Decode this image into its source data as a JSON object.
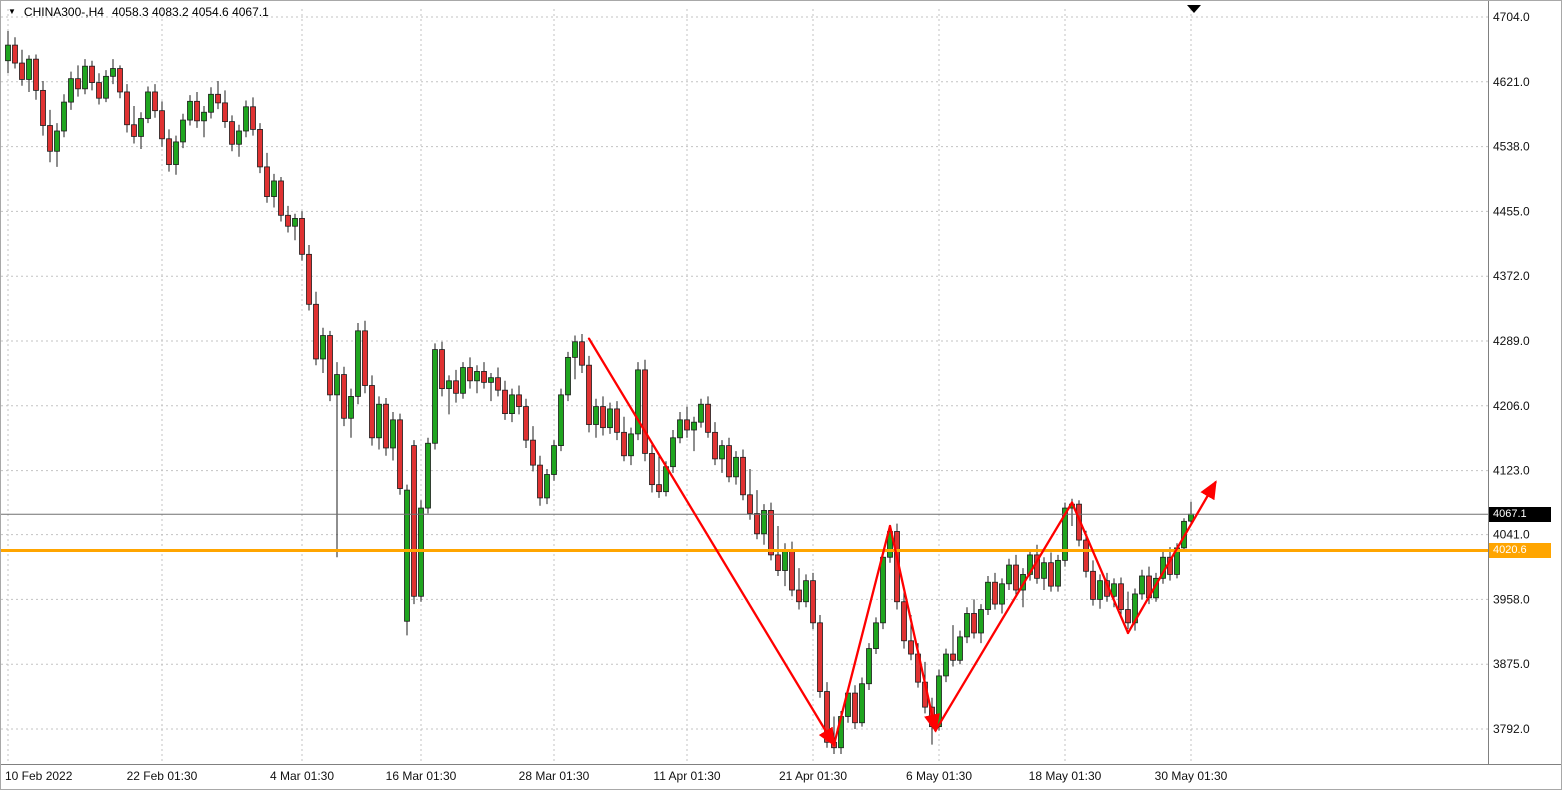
{
  "header": {
    "marker": "▼",
    "symbol": "CHINA300-,H4",
    "ohlc": "4058.3 4083.2 4054.6 4067.1"
  },
  "style": {
    "background": "#ffffff",
    "grid_color": "#c3c3c3",
    "axis_text_color": "#111111",
    "separator_color": "#808080",
    "bull_color": "#1fa51f",
    "bear_color": "#e03232",
    "candle_outline": "#1c1c1c",
    "current_badge_bg": "#000000",
    "shift_marker_color": "#000000"
  },
  "chart_data": {
    "type": "candlestick",
    "title": "CHINA300-,H4",
    "symbol": "CHINA300-",
    "timeframe": "H4",
    "grid": true,
    "ylim": [
      3747,
      4712
    ],
    "bar_spacing_px": 7,
    "current_bar": {
      "open": 4058.3,
      "high": 4083.2,
      "low": 4054.6,
      "close": 4067.1
    },
    "y_axis_labels": [
      {
        "text": "4704.0",
        "price": 4704.0
      },
      {
        "text": "4621.0",
        "price": 4621.0
      },
      {
        "text": "4538.0",
        "price": 4538.0
      },
      {
        "text": "4455.0",
        "price": 4455.0
      },
      {
        "text": "4372.0",
        "price": 4372.0
      },
      {
        "text": "4289.0",
        "price": 4289.0
      },
      {
        "text": "4206.0",
        "price": 4206.0
      },
      {
        "text": "4123.0",
        "price": 4123.0
      },
      {
        "text": "4041.0",
        "price": 4041.0
      },
      {
        "text": "3958.0",
        "price": 3958.0
      },
      {
        "text": "3875.0",
        "price": 3875.0
      },
      {
        "text": "3792.0",
        "price": 3792.0
      }
    ],
    "x_axis_labels": [
      {
        "text": "10 Feb 2022",
        "bar": 0
      },
      {
        "text": "22 Feb 01:30",
        "bar": 22
      },
      {
        "text": "4 Mar 01:30",
        "bar": 42
      },
      {
        "text": "16 Mar 01:30",
        "bar": 59
      },
      {
        "text": "28 Mar 01:30",
        "bar": 78
      },
      {
        "text": "11 Apr 01:30",
        "bar": 97
      },
      {
        "text": "21 Apr 01:30",
        "bar": 115
      },
      {
        "text": "6 May 01:30",
        "bar": 133
      },
      {
        "text": "18 May 01:30",
        "bar": 151
      },
      {
        "text": "30 May 01:30",
        "bar": 169
      }
    ],
    "horizontal_line": {
      "price": 4020.6,
      "label": "4020.6",
      "color": "#ffa500",
      "width": 3
    },
    "current_price_line": {
      "price": 4067.1,
      "label": "4067.1",
      "color": "#707070",
      "width": 1
    },
    "trend_annotation": {
      "color": "#ff0000",
      "points": [
        {
          "bar": 83,
          "price": 4292
        },
        {
          "bar": 118,
          "price": 3772
        },
        {
          "bar": 126,
          "price": 4052
        },
        {
          "bar": 132.5,
          "price": 3790
        },
        {
          "bar": 152,
          "price": 4082
        },
        {
          "bar": 160,
          "price": 3915
        },
        {
          "bar": 172.5,
          "price": 4108
        }
      ],
      "arrowhead_at": [
        1,
        3,
        6
      ]
    },
    "candles": [
      [
        4648,
        4686,
        4632,
        4668
      ],
      [
        4668,
        4678,
        4638,
        4645
      ],
      [
        4645,
        4662,
        4616,
        4624
      ],
      [
        4624,
        4655,
        4608,
        4650
      ],
      [
        4650,
        4656,
        4598,
        4610
      ],
      [
        4610,
        4622,
        4552,
        4565
      ],
      [
        4565,
        4585,
        4518,
        4532
      ],
      [
        4532,
        4568,
        4512,
        4558
      ],
      [
        4558,
        4605,
        4550,
        4595
      ],
      [
        4595,
        4634,
        4585,
        4625
      ],
      [
        4625,
        4642,
        4602,
        4612
      ],
      [
        4612,
        4650,
        4605,
        4641
      ],
      [
        4641,
        4648,
        4610,
        4620
      ],
      [
        4620,
        4632,
        4592,
        4600
      ],
      [
        4600,
        4636,
        4595,
        4628
      ],
      [
        4628,
        4650,
        4618,
        4638
      ],
      [
        4638,
        4642,
        4600,
        4608
      ],
      [
        4608,
        4618,
        4556,
        4566
      ],
      [
        4566,
        4590,
        4542,
        4551
      ],
      [
        4551,
        4582,
        4535,
        4574
      ],
      [
        4574,
        4615,
        4568,
        4608
      ],
      [
        4608,
        4618,
        4575,
        4584
      ],
      [
        4584,
        4596,
        4538,
        4548
      ],
      [
        4548,
        4560,
        4506,
        4515
      ],
      [
        4515,
        4552,
        4502,
        4544
      ],
      [
        4544,
        4580,
        4536,
        4572
      ],
      [
        4572,
        4604,
        4565,
        4596
      ],
      [
        4596,
        4608,
        4562,
        4571
      ],
      [
        4571,
        4590,
        4550,
        4582
      ],
      [
        4582,
        4614,
        4574,
        4605
      ],
      [
        4605,
        4622,
        4586,
        4594
      ],
      [
        4594,
        4610,
        4562,
        4570
      ],
      [
        4570,
        4578,
        4532,
        4541
      ],
      [
        4541,
        4566,
        4525,
        4558
      ],
      [
        4558,
        4597,
        4550,
        4589
      ],
      [
        4589,
        4601,
        4552,
        4560
      ],
      [
        4560,
        4568,
        4504,
        4512
      ],
      [
        4512,
        4530,
        4466,
        4474
      ],
      [
        4474,
        4503,
        4460,
        4494
      ],
      [
        4494,
        4499,
        4442,
        4450
      ],
      [
        4450,
        4462,
        4428,
        4436
      ],
      [
        4436,
        4452,
        4418,
        4446
      ],
      [
        4446,
        4455,
        4392,
        4400
      ],
      [
        4400,
        4412,
        4328,
        4336
      ],
      [
        4336,
        4352,
        4258,
        4266
      ],
      [
        4266,
        4306,
        4248,
        4296
      ],
      [
        4296,
        4302,
        4212,
        4220
      ],
      [
        4220,
        4262,
        4012,
        4246
      ],
      [
        4246,
        4256,
        4180,
        4190
      ],
      [
        4190,
        4228,
        4165,
        4218
      ],
      [
        4218,
        4312,
        4208,
        4302
      ],
      [
        4302,
        4315,
        4222,
        4232
      ],
      [
        4232,
        4245,
        4155,
        4165
      ],
      [
        4165,
        4218,
        4150,
        4208
      ],
      [
        4208,
        4216,
        4142,
        4152
      ],
      [
        4152,
        4198,
        4136,
        4188
      ],
      [
        4188,
        4196,
        4092,
        4100
      ],
      [
        3930,
        4105,
        3912,
        4098
      ],
      [
        4155,
        4162,
        3952,
        3962
      ],
      [
        3962,
        4085,
        3955,
        4075
      ],
      [
        4075,
        4165,
        4068,
        4158
      ],
      [
        4158,
        4286,
        4150,
        4278
      ],
      [
        4278,
        4288,
        4218,
        4228
      ],
      [
        4228,
        4245,
        4195,
        4238
      ],
      [
        4238,
        4252,
        4210,
        4222
      ],
      [
        4222,
        4262,
        4215,
        4255
      ],
      [
        4255,
        4268,
        4228,
        4238
      ],
      [
        4238,
        4258,
        4222,
        4250
      ],
      [
        4250,
        4262,
        4228,
        4236
      ],
      [
        4236,
        4248,
        4212,
        4242
      ],
      [
        4242,
        4255,
        4218,
        4226
      ],
      [
        4226,
        4238,
        4188,
        4196
      ],
      [
        4196,
        4228,
        4185,
        4220
      ],
      [
        4220,
        4232,
        4195,
        4205
      ],
      [
        4205,
        4215,
        4152,
        4162
      ],
      [
        4162,
        4180,
        4122,
        4130
      ],
      [
        4130,
        4142,
        4078,
        4088
      ],
      [
        4088,
        4125,
        4080,
        4118
      ],
      [
        4118,
        4162,
        4110,
        4155
      ],
      [
        4155,
        4228,
        4148,
        4220
      ],
      [
        4220,
        4275,
        4212,
        4268
      ],
      [
        4268,
        4296,
        4240,
        4288
      ],
      [
        4288,
        4298,
        4248,
        4258
      ],
      [
        4258,
        4270,
        4172,
        4182
      ],
      [
        4182,
        4215,
        4165,
        4205
      ],
      [
        4205,
        4218,
        4168,
        4178
      ],
      [
        4178,
        4210,
        4170,
        4202
      ],
      [
        4202,
        4212,
        4162,
        4172
      ],
      [
        4172,
        4192,
        4135,
        4142
      ],
      [
        4142,
        4178,
        4130,
        4170
      ],
      [
        4170,
        4262,
        4162,
        4252
      ],
      [
        4252,
        4265,
        4135,
        4145
      ],
      [
        4145,
        4158,
        4095,
        4105
      ],
      [
        4105,
        4142,
        4088,
        4096
      ],
      [
        4096,
        4135,
        4090,
        4128
      ],
      [
        4128,
        4175,
        4120,
        4165
      ],
      [
        4165,
        4198,
        4158,
        4188
      ],
      [
        4188,
        4205,
        4165,
        4175
      ],
      [
        4175,
        4192,
        4148,
        4185
      ],
      [
        4185,
        4215,
        4178,
        4208
      ],
      [
        4208,
        4218,
        4165,
        4172
      ],
      [
        4172,
        4185,
        4130,
        4138
      ],
      [
        4138,
        4162,
        4120,
        4155
      ],
      [
        4155,
        4165,
        4108,
        4115
      ],
      [
        4115,
        4148,
        4105,
        4140
      ],
      [
        4140,
        4150,
        4085,
        4092
      ],
      [
        4092,
        4125,
        4060,
        4068
      ],
      [
        4068,
        4098,
        4035,
        4042
      ],
      [
        4042,
        4080,
        4028,
        4072
      ],
      [
        4072,
        4082,
        4008,
        4015
      ],
      [
        4015,
        4052,
        3988,
        3995
      ],
      [
        3995,
        4030,
        3975,
        4022
      ],
      [
        4022,
        4032,
        3962,
        3970
      ],
      [
        3970,
        3998,
        3945,
        3955
      ],
      [
        3955,
        3990,
        3948,
        3982
      ],
      [
        3982,
        3992,
        3920,
        3928
      ],
      [
        3928,
        3938,
        3832,
        3840
      ],
      [
        3840,
        3852,
        3768,
        3775
      ],
      [
        3775,
        3808,
        3760,
        3768
      ],
      [
        3768,
        3815,
        3760,
        3808
      ],
      [
        3808,
        3845,
        3800,
        3838
      ],
      [
        3838,
        3848,
        3792,
        3800
      ],
      [
        3800,
        3858,
        3795,
        3850
      ],
      [
        3850,
        3902,
        3842,
        3895
      ],
      [
        3895,
        3935,
        3888,
        3928
      ],
      [
        3928,
        4022,
        3920,
        4012
      ],
      [
        4012,
        4052,
        4005,
        4045
      ],
      [
        4045,
        4055,
        3945,
        3955
      ],
      [
        3955,
        3972,
        3895,
        3905
      ],
      [
        3905,
        3938,
        3880,
        3888
      ],
      [
        3888,
        3902,
        3845,
        3852
      ],
      [
        3852,
        3878,
        3812,
        3820
      ],
      [
        3820,
        3832,
        3772,
        3795
      ],
      [
        3795,
        3868,
        3790,
        3860
      ],
      [
        3860,
        3895,
        3852,
        3888
      ],
      [
        3888,
        3925,
        3872,
        3880
      ],
      [
        3880,
        3918,
        3875,
        3910
      ],
      [
        3910,
        3948,
        3902,
        3940
      ],
      [
        3940,
        3958,
        3908,
        3915
      ],
      [
        3915,
        3952,
        3902,
        3945
      ],
      [
        3945,
        3988,
        3938,
        3980
      ],
      [
        3980,
        3992,
        3945,
        3952
      ],
      [
        3952,
        3985,
        3940,
        3978
      ],
      [
        3978,
        4010,
        3970,
        4002
      ],
      [
        4002,
        4015,
        3962,
        3970
      ],
      [
        3970,
        3998,
        3948,
        3990
      ],
      [
        3990,
        4022,
        3982,
        4015
      ],
      [
        4015,
        4028,
        3978,
        3985
      ],
      [
        3985,
        4012,
        3970,
        4005
      ],
      [
        4005,
        4018,
        3968,
        3975
      ],
      [
        3975,
        4015,
        3968,
        4008
      ],
      [
        4008,
        4082,
        4000,
        4075
      ],
      [
        4075,
        4087,
        4052,
        4080
      ],
      [
        4080,
        4085,
        4026,
        4034
      ],
      [
        4034,
        4046,
        3986,
        3994
      ],
      [
        3994,
        4008,
        3950,
        3958
      ],
      [
        3958,
        3990,
        3946,
        3982
      ],
      [
        3982,
        3992,
        3955,
        3962
      ],
      [
        3962,
        3985,
        3948,
        3978
      ],
      [
        3978,
        3986,
        3938,
        3945
      ],
      [
        3945,
        3968,
        3920,
        3928
      ],
      [
        3928,
        3972,
        3918,
        3965
      ],
      [
        3965,
        3996,
        3958,
        3988
      ],
      [
        3988,
        4000,
        3952,
        3960
      ],
      [
        3960,
        3992,
        3955,
        3985
      ],
      [
        3985,
        4020,
        3978,
        4012
      ],
      [
        4012,
        4025,
        3982,
        3990
      ],
      [
        3990,
        4030,
        3985,
        4024
      ],
      [
        4024,
        4062,
        4020,
        4058
      ],
      [
        4058.3,
        4083.2,
        4054.6,
        4067.1
      ]
    ]
  }
}
